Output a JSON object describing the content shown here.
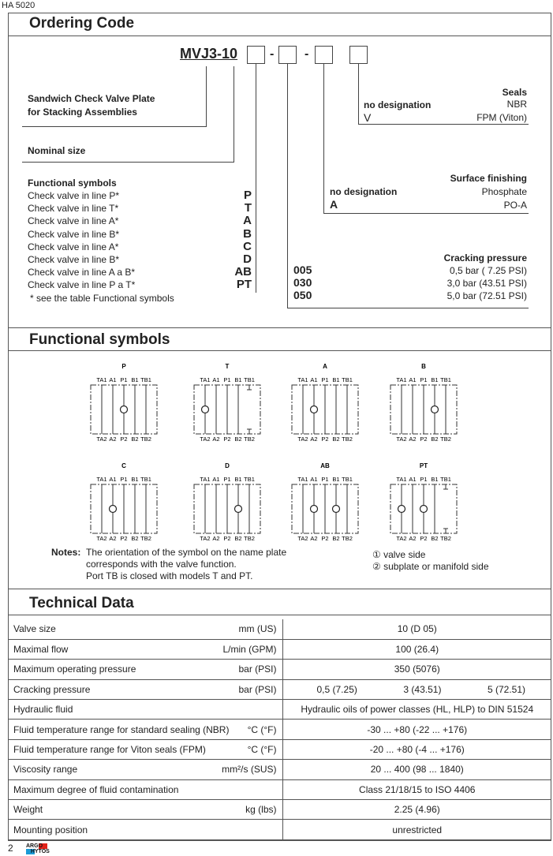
{
  "doc_id": "HA 5020",
  "page_number": "2",
  "logo": "ARGO HYTOS",
  "ordering": {
    "title": "Ordering Code",
    "code_prefix": "MVJ3-",
    "code_size": "10",
    "separator": "-",
    "description_l1": "Sandwich Check Valve Plate",
    "description_l2": "for Stacking Assemblies",
    "nominal_size": "Nominal size",
    "functional_title": "Functional symbols",
    "functions": [
      {
        "label": "Check valve in line P*",
        "code": "P"
      },
      {
        "label": "Check valve in line T*",
        "code": "T"
      },
      {
        "label": "Check valve in line A*",
        "code": "A"
      },
      {
        "label": "Check valve in line B*",
        "code": "B"
      },
      {
        "label": "Check valve in line A*",
        "code": "C"
      },
      {
        "label": "Check valve in line B*",
        "code": "D"
      },
      {
        "label": "Check valve in line A a B*",
        "code": "AB"
      },
      {
        "label": "Check valve in line P a T*",
        "code": "PT"
      }
    ],
    "footnote": "* see the table Functional symbols",
    "seals": {
      "title": "Seals",
      "rows": [
        {
          "code": "no designation",
          "value": "NBR"
        },
        {
          "code": "V",
          "value": "FPM (Viton)"
        }
      ]
    },
    "surface": {
      "title": "Surface finishing",
      "rows": [
        {
          "code": "no designation",
          "value": "Phosphate"
        },
        {
          "code": "A",
          "value": "PO-A"
        }
      ]
    },
    "cracking": {
      "title": "Cracking pressure",
      "rows": [
        {
          "code": "005",
          "value": "0,5 bar ( 7.25 PSI)"
        },
        {
          "code": "030",
          "value": "3,0 bar (43.51 PSI)"
        },
        {
          "code": "050",
          "value": "5,0 bar (72.51 PSI)"
        }
      ]
    }
  },
  "symbols": {
    "title": "Functional symbols",
    "top_ports": [
      "TA1",
      "A1",
      "P1",
      "B1",
      "TB1"
    ],
    "bottom_ports": [
      "TA2",
      "A2",
      "P2",
      "B2",
      "TB2"
    ],
    "items": [
      {
        "name": "P",
        "valves": [
          "P"
        ],
        "closed": []
      },
      {
        "name": "T",
        "valves": [
          "TA"
        ],
        "closed": [
          "TB"
        ]
      },
      {
        "name": "A",
        "valves": [
          "A"
        ],
        "closed": []
      },
      {
        "name": "B",
        "valves": [
          "B"
        ],
        "closed": []
      },
      {
        "name": "C",
        "valves": [
          "A"
        ],
        "closed": []
      },
      {
        "name": "D",
        "valves": [
          "B"
        ],
        "closed": []
      },
      {
        "name": "AB",
        "valves": [
          "A",
          "B"
        ],
        "closed": []
      },
      {
        "name": "PT",
        "valves": [
          "TA",
          "P"
        ],
        "closed": [
          "TB"
        ]
      }
    ],
    "notes_label": "Notes:",
    "notes": [
      "The orientation of the symbol on the name plate",
      "corresponds with the valve function.",
      "Port TB is closed with models T and PT."
    ],
    "legend": [
      "① valve side",
      "② subplate or manifold side"
    ]
  },
  "technical": {
    "title": "Technical Data",
    "rows": [
      {
        "param": "Valve size",
        "unit": "mm (US)",
        "value": "10 (D 05)"
      },
      {
        "param": "Maximal flow",
        "unit": "L/min (GPM)",
        "value": "100 (26.4)"
      },
      {
        "param": "Maximum operating pressure",
        "unit": "bar (PSI)",
        "value": "350 (5076)"
      },
      {
        "param": "Cracking pressure",
        "unit": "bar (PSI)",
        "values": [
          "0,5 (7.25)",
          "3 (43.51)",
          "5 (72.51)"
        ]
      },
      {
        "param": "Hydraulic fluid",
        "unit": "",
        "value": "Hydraulic oils of power classes (HL, HLP) to DIN 51524"
      },
      {
        "param": "Fluid temperature range for standard sealing (NBR)",
        "unit": "°C (°F)",
        "value": "-30 ... +80 (-22 ... +176)"
      },
      {
        "param": "Fluid temperature range for Viton seals (FPM)",
        "unit": "°C (°F)",
        "value": "-20 ... +80 (-4 ... +176)"
      },
      {
        "param": "Viscosity range",
        "unit": "mm²/s (SUS)",
        "value": "20 ... 400 (98 ... 1840)"
      },
      {
        "param": "Maximum degree of fluid contamination",
        "unit": "",
        "value": "Class 21/18/15 to ISO 4406"
      },
      {
        "param": "Weight",
        "unit": "kg (lbs)",
        "value": "2.25 (4.96)"
      },
      {
        "param": "Mounting position",
        "unit": "",
        "value": "unrestricted"
      }
    ]
  }
}
